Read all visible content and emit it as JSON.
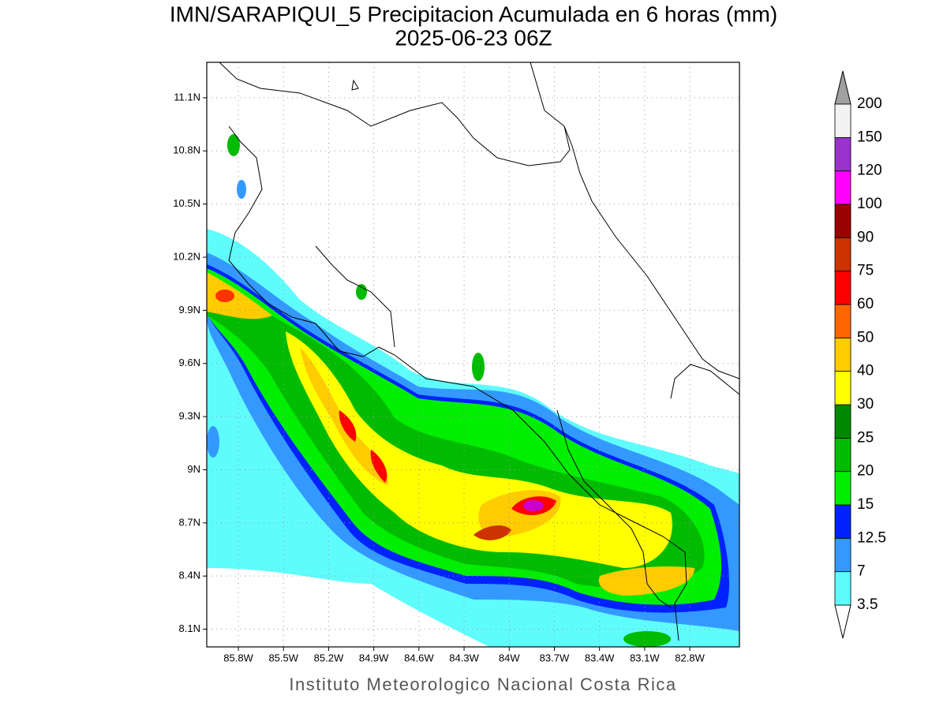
{
  "header": {
    "title": "IMN/SARAPIQUI_5 Precipitacion Acumulada en 6 horas (mm)",
    "subtitle": "2025-06-23 06Z"
  },
  "map": {
    "xlim": [
      -86.01,
      -82.47
    ],
    "ylim": [
      8.0,
      11.3
    ],
    "xticks": [
      {
        "value": -85.8,
        "label": "85.8W"
      },
      {
        "value": -85.5,
        "label": "85.5W"
      },
      {
        "value": -85.2,
        "label": "85.2W"
      },
      {
        "value": -84.9,
        "label": "84.9W"
      },
      {
        "value": -84.6,
        "label": "84.6W"
      },
      {
        "value": -84.3,
        "label": "84.3W"
      },
      {
        "value": -84.0,
        "label": "84W"
      },
      {
        "value": -83.7,
        "label": "83.7W"
      },
      {
        "value": -83.4,
        "label": "83.4W"
      },
      {
        "value": -83.1,
        "label": "83.1W"
      },
      {
        "value": -82.8,
        "label": "82.8W"
      }
    ],
    "yticks": [
      {
        "value": 8.1,
        "label": "8.1N"
      },
      {
        "value": 8.4,
        "label": "8.4N"
      },
      {
        "value": 8.7,
        "label": "8.7N"
      },
      {
        "value": 9.0,
        "label": "9N"
      },
      {
        "value": 9.3,
        "label": "9.3N"
      },
      {
        "value": 9.6,
        "label": "9.6N"
      },
      {
        "value": 9.9,
        "label": "9.9N"
      },
      {
        "value": 10.2,
        "label": "10.2N"
      },
      {
        "value": 10.5,
        "label": "10.5N"
      },
      {
        "value": 10.8,
        "label": "10.8N"
      },
      {
        "value": 11.1,
        "label": "11.1N"
      }
    ],
    "grid": true
  },
  "colorbar": {
    "levels": [
      3.5,
      7,
      12.5,
      15,
      20,
      25,
      30,
      40,
      50,
      60,
      75,
      90,
      100,
      120,
      150,
      200
    ],
    "colors": [
      "#5ffcfc",
      "#3399ff",
      "#0022ff",
      "#00ee00",
      "#00bb00",
      "#008800",
      "#ffff00",
      "#ffcc00",
      "#ff6600",
      "#ff0000",
      "#cc3300",
      "#990000",
      "#ff00ff",
      "#9933cc",
      "#f2f2f2"
    ]
  },
  "footer": "Instituto Meteorologico Nacional Costa Rica"
}
